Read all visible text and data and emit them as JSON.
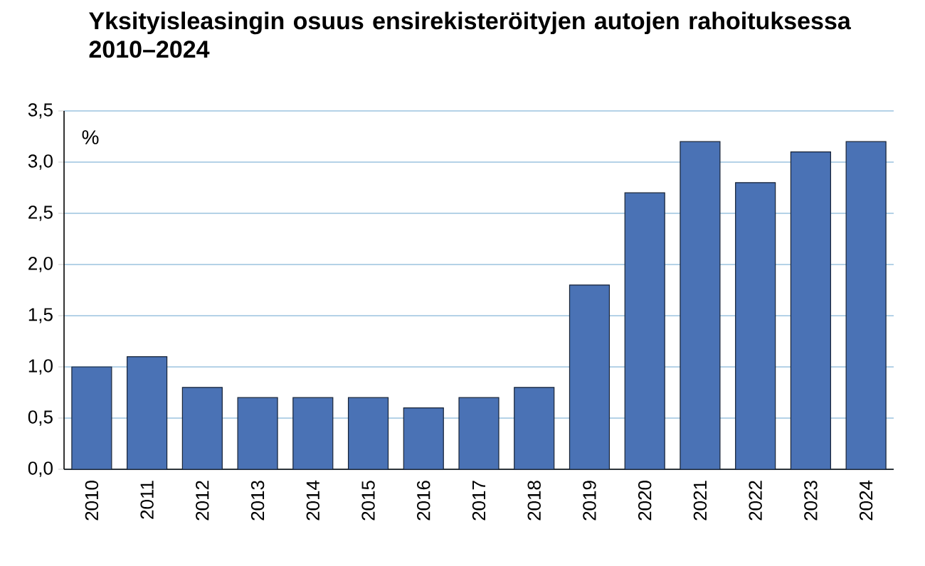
{
  "chart_data": {
    "type": "bar",
    "title": "Yksityisleasingin osuus ensirekisteröityjen autojen rahoituksessa 2010–2024",
    "ylabel": "%",
    "categories": [
      "2010",
      "2011",
      "2012",
      "2013",
      "2014",
      "2015",
      "2016",
      "2017",
      "2018",
      "2019",
      "2020",
      "2021",
      "2022",
      "2023",
      "2024"
    ],
    "values": [
      1.0,
      1.1,
      0.8,
      0.7,
      0.7,
      0.7,
      0.6,
      0.7,
      0.8,
      1.8,
      2.7,
      3.2,
      2.8,
      3.1,
      3.2
    ],
    "color": "#4a72b5",
    "ylim": [
      0,
      3.5
    ],
    "yticks": [
      {
        "value": 0,
        "label": "0,0"
      },
      {
        "value": 0.5,
        "label": "0,5"
      },
      {
        "value": 1,
        "label": "1,0"
      },
      {
        "value": 1.5,
        "label": "1,5"
      },
      {
        "value": 2,
        "label": "2,0"
      },
      {
        "value": 2.5,
        "label": "2,5"
      },
      {
        "value": 3,
        "label": "3,0"
      },
      {
        "value": 3.5,
        "label": "3,5"
      }
    ],
    "grid": "y"
  }
}
